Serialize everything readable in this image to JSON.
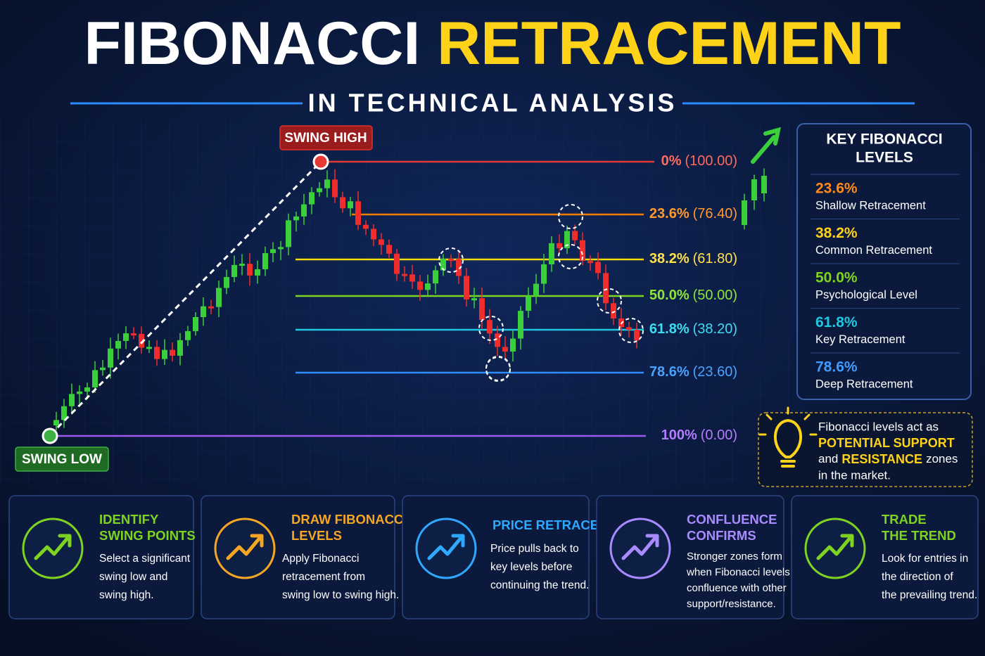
{
  "header": {
    "title_white": "FIBONACCI",
    "title_yellow": "RETRACEMENT",
    "subtitle": "IN TECHNICAL ANALYSIS"
  },
  "chart": {
    "swing_high": "SWING HIGH",
    "swing_low": "SWING LOW",
    "levels": [
      {
        "pct": "0%",
        "price": "(100.00)"
      },
      {
        "pct": "23.6%",
        "price": "(76.40)"
      },
      {
        "pct": "38.2%",
        "price": "(61.80)"
      },
      {
        "pct": "50.0%",
        "price": "(50.00)"
      },
      {
        "pct": "61.8%",
        "price": "(38.20)"
      },
      {
        "pct": "78.6%",
        "price": "(23.60)"
      },
      {
        "pct": "100%",
        "price": "(0.00)"
      }
    ]
  },
  "key_levels": {
    "title_lines": [
      "KEY FIBONACCI",
      "LEVELS"
    ],
    "items": [
      {
        "pct": "23.6%",
        "desc": "Shallow Retracement"
      },
      {
        "pct": "38.2%",
        "desc": "Common Retracement"
      },
      {
        "pct": "50.0%",
        "desc": "Psychological Level"
      },
      {
        "pct": "61.8%",
        "desc": "Key Retracement"
      },
      {
        "pct": "78.6%",
        "desc": "Deep Retracement"
      }
    ]
  },
  "note": {
    "line1": "Fibonacci levels act as",
    "support": "POTENTIAL SUPPORT",
    "and": "and",
    "resistance": "RESISTANCE",
    "zones": "zones",
    "line4": "in the market."
  },
  "steps": [
    {
      "title_lines": [
        "IDENTIFY",
        "SWING POINTS"
      ],
      "text_lines": [
        "Select a significant",
        "swing low and",
        "swing high."
      ]
    },
    {
      "title_lines": [
        "DRAW FIBONACCI",
        "LEVELS"
      ],
      "text_lines": [
        "Apply Fibonacci",
        "retracement from",
        "swing low to swing high."
      ]
    },
    {
      "title_lines": [
        "PRICE RETRACES"
      ],
      "text_lines": [
        "Price pulls back to",
        "key levels before",
        "continuing the trend."
      ]
    },
    {
      "title_lines": [
        "CONFLUENCE",
        "CONFIRMS"
      ],
      "text_lines": [
        "Stronger zones form",
        "when Fibonacci levels",
        "confluence with other",
        "support/resistance."
      ]
    },
    {
      "title_lines": [
        "TRADE",
        "THE TREND"
      ],
      "text_lines": [
        "Look for entries in",
        "the direction of",
        "the prevailing trend."
      ]
    }
  ]
}
